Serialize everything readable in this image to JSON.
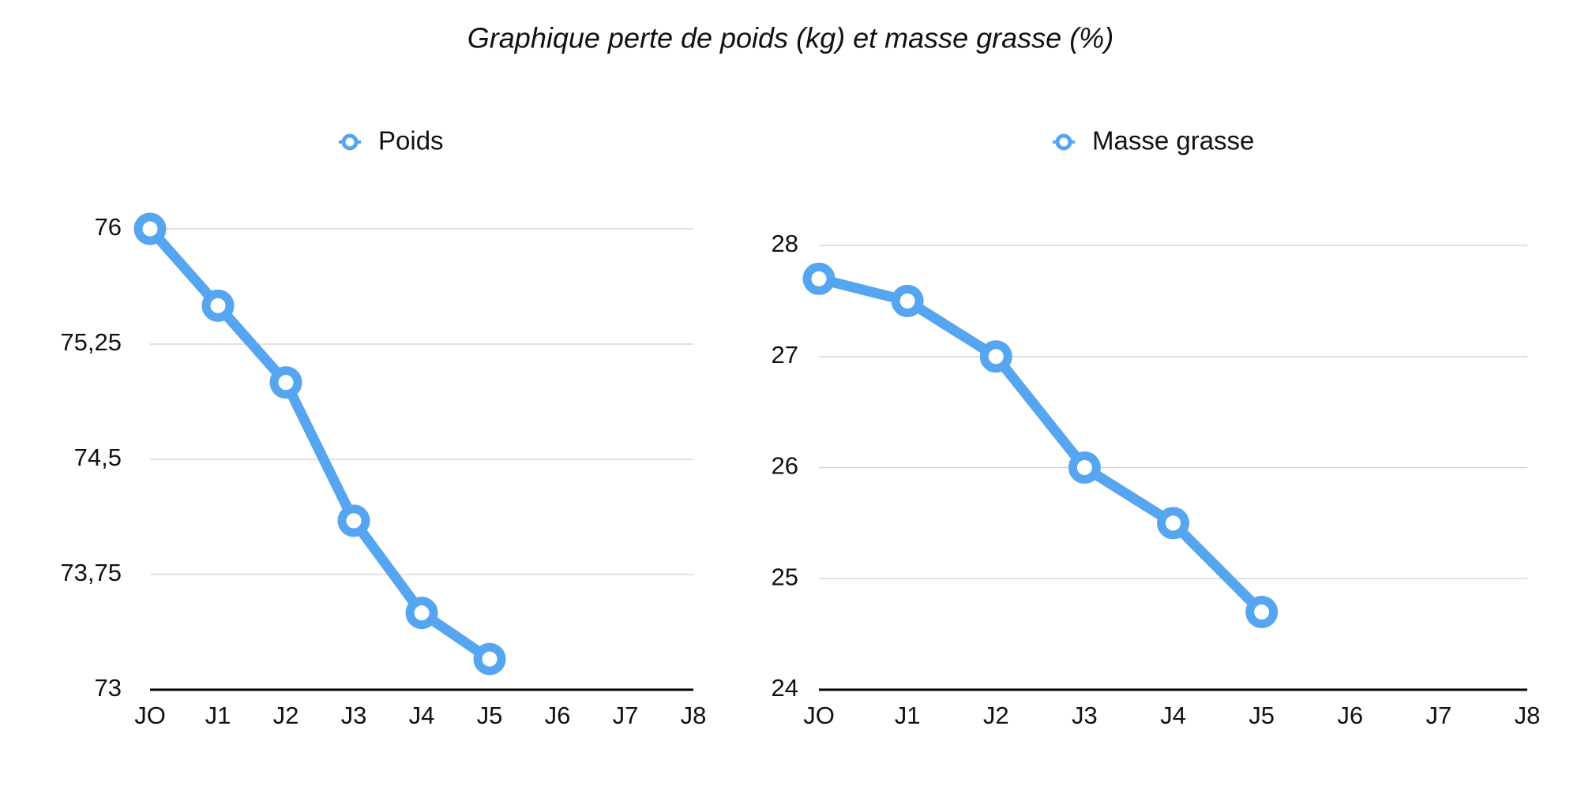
{
  "title": "Graphique perte de poids (kg)  et masse grasse (%)",
  "chart_data": [
    {
      "type": "line",
      "categories": [
        "JO",
        "J1",
        "J2",
        "J3",
        "J4",
        "J5",
        "J6",
        "J7",
        "J8"
      ],
      "series": [
        {
          "name": "Poids",
          "color": "#56a5f0",
          "values": [
            76,
            75.5,
            75,
            74.1,
            73.5,
            73.2,
            null,
            null,
            null
          ]
        }
      ],
      "ylim": [
        73,
        76
      ],
      "yticks": [
        73,
        {
          "value": 73.75,
          "label": "73,75"
        },
        {
          "value": 74.5,
          "label": "74,5"
        },
        {
          "value": 75.25,
          "label": "75,25"
        },
        76
      ],
      "grid": true,
      "legend": "top"
    },
    {
      "type": "line",
      "categories": [
        "JO",
        "J1",
        "J2",
        "J3",
        "J4",
        "J5",
        "J6",
        "J7",
        "J8"
      ],
      "series": [
        {
          "name": "Masse grasse",
          "color": "#56a5f0",
          "values": [
            27.7,
            27.5,
            27,
            26,
            25.5,
            24.7,
            null,
            null,
            null
          ]
        }
      ],
      "ylim": [
        24,
        28
      ],
      "yticks": [
        24,
        25,
        26,
        27,
        28
      ],
      "grid": true,
      "legend": "top"
    }
  ]
}
